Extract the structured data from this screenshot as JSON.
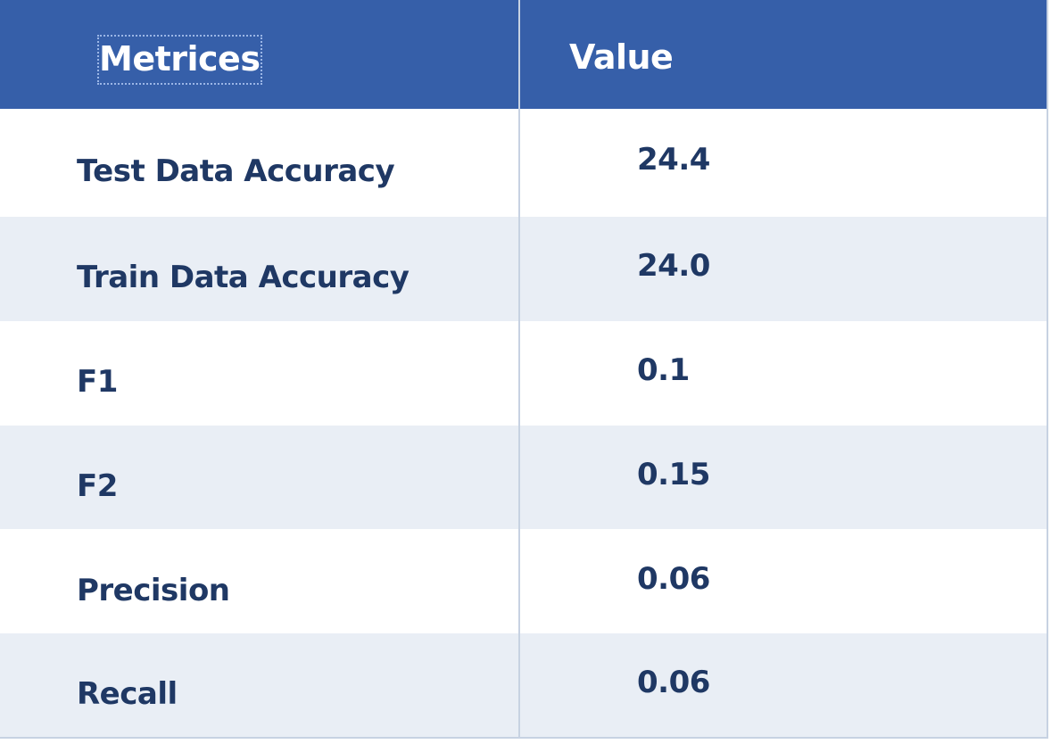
{
  "table": {
    "headers": [
      "Metrices",
      "Value"
    ],
    "rows": [
      [
        "Test Data Accuracy",
        "24.4"
      ],
      [
        "Train Data Accuracy",
        "24.0"
      ],
      [
        "F1",
        "0.1"
      ],
      [
        "F2",
        "0.15"
      ],
      [
        "Precision",
        "0.06"
      ],
      [
        "Recall",
        "0.06"
      ]
    ]
  },
  "colors": {
    "header_bg": "#365fa9",
    "header_text": "#ffffff",
    "row_alt_bg": "#e9eef5",
    "body_text": "#1f3864",
    "divider": "#c7d2e2"
  }
}
